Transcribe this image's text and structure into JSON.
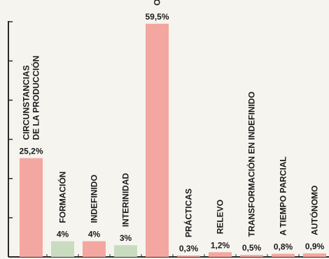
{
  "chart_data": {
    "type": "bar",
    "title": "",
    "xlabel": "",
    "ylabel": "",
    "ylim": [
      0,
      60
    ],
    "grid": false,
    "categories": [
      [
        "CIRCUNSTANCIAS",
        "DE LA PRODUCCIÓN"
      ],
      [
        "FORMACIÓN"
      ],
      [
        "INDEFINIDO"
      ],
      [
        "INTERINIDAD"
      ],
      [
        "OBRA O SERVICIO"
      ],
      [
        "PRÁCTICAS"
      ],
      [
        "RELEVO"
      ],
      [
        "TRANSFORMACIÓN EN INDEFINIDO"
      ],
      [
        "A TIEMPO PARCIAL"
      ],
      [
        "AUTÓNOMO"
      ]
    ],
    "values": [
      25.2,
      4,
      4,
      3,
      59.5,
      0.3,
      1.2,
      0.5,
      0.8,
      0.9
    ],
    "value_labels": [
      "25,2%",
      "4%",
      "4%",
      "3%",
      "59,5%",
      "0,3%",
      "1,2%",
      "0,5%",
      "0,8%",
      "0,9%"
    ],
    "bar_colors": [
      "#f4a7a0",
      "#c9dcc0",
      "#f4a7a0",
      "#c9dcc0",
      "#f4a7a0",
      "#f4a7a0",
      "#f4a7a0",
      "#f4a7a0",
      "#f4a7a0",
      "#f4a7a0"
    ],
    "axis_color": "#2a2a2a"
  }
}
